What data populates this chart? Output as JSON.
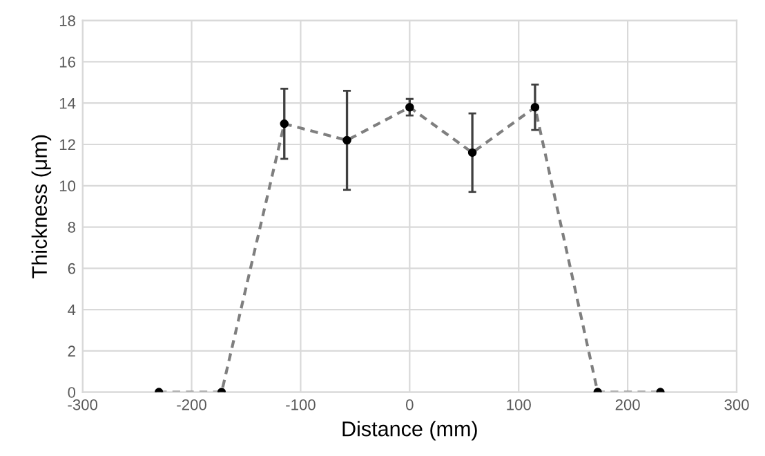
{
  "chart_data": {
    "type": "line",
    "xlabel": "Distance (mm)",
    "ylabel": "Thickness (μm)",
    "x": [
      -230,
      -172.5,
      -115,
      -57.5,
      0,
      57.5,
      115,
      172.5,
      230
    ],
    "series": [
      {
        "color": "#7f7f7f",
        "values": [
          0,
          0,
          13.0,
          12.2,
          13.8,
          11.6,
          13.8,
          0,
          0
        ],
        "errors": [
          null,
          null,
          1.7,
          2.4,
          0.4,
          1.9,
          1.1,
          null,
          null
        ]
      }
    ],
    "xlim": [
      -300,
      300
    ],
    "xticks": [
      -300,
      -200,
      -100,
      0,
      100,
      200,
      300
    ],
    "ylim": [
      0,
      18
    ],
    "yticks": [
      0,
      2,
      4,
      6,
      8,
      10,
      12,
      14,
      16,
      18
    ],
    "grid": true,
    "marker": "circle",
    "line_style": "dashed"
  }
}
